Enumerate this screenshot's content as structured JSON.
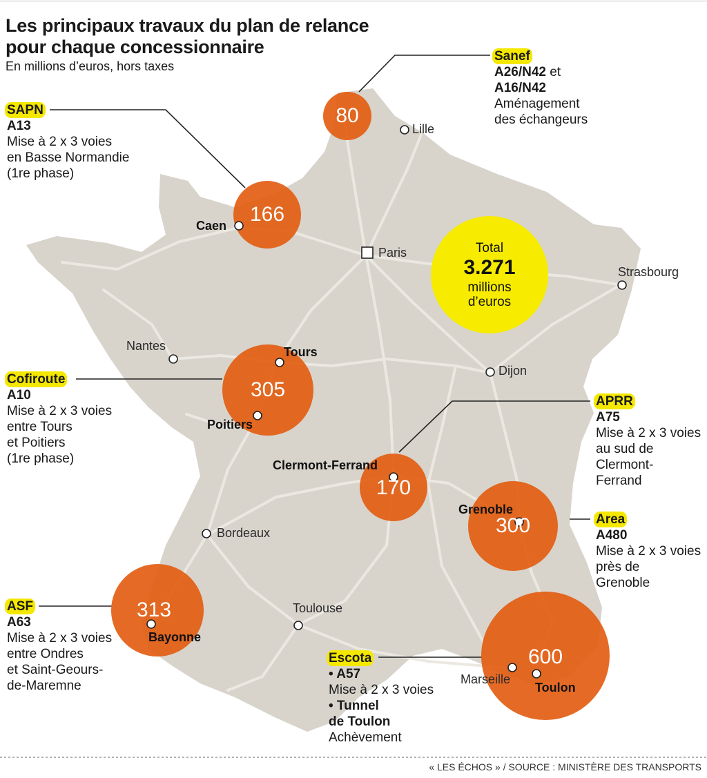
{
  "title_lines": [
    "Les principaux travaux du plan de relance",
    "pour chaque concessionnaire"
  ],
  "subtitle": "En millions d’euros, hors taxes",
  "colors": {
    "land": "#d8d4cc",
    "road": "#ebe8e2",
    "bubble": "#e35d12",
    "total": "#f7ec00",
    "highlight": "#f5e800"
  },
  "total": {
    "label": "Total",
    "value": "3.271",
    "unit_line1": "millions",
    "unit_line2": "d’euros"
  },
  "projects": [
    {
      "operator": "Sanef",
      "value": "80",
      "lines": [
        {
          "text": "A26/N42",
          "style": "bold",
          "suffix": " et"
        },
        {
          "text": "A16/N42",
          "style": "bold"
        },
        {
          "text": "Aménagement"
        },
        {
          "text": "des échangeurs"
        }
      ]
    },
    {
      "operator": "SAPN",
      "value": "166",
      "lines": [
        {
          "text": "A13",
          "style": "bold"
        },
        {
          "text": "Mise à 2 x 3 voies"
        },
        {
          "text": "en Basse Normandie"
        },
        {
          "text": "(1re phase)"
        }
      ]
    },
    {
      "operator": "Cofiroute",
      "value": "305",
      "lines": [
        {
          "text": "A10",
          "style": "bold"
        },
        {
          "text": "Mise à 2 x 3 voies"
        },
        {
          "text": "entre Tours"
        },
        {
          "text": "et Poitiers"
        },
        {
          "text": "(1re phase)"
        }
      ]
    },
    {
      "operator": "APRR",
      "value": "170",
      "lines": [
        {
          "text": "A75",
          "style": "bold"
        },
        {
          "text": "Mise à 2 x 3 voies"
        },
        {
          "text": "au sud de"
        },
        {
          "text": "Clermont-"
        },
        {
          "text": "Ferrand"
        }
      ]
    },
    {
      "operator": "Area",
      "value": "300",
      "lines": [
        {
          "text": "A480",
          "style": "bold"
        },
        {
          "text": "Mise à 2 x 3 voies"
        },
        {
          "text": "près de"
        },
        {
          "text": "Grenoble"
        }
      ]
    },
    {
      "operator": "ASF",
      "value": "313",
      "lines": [
        {
          "text": "A63",
          "style": "bold"
        },
        {
          "text": "Mise à 2 x 3 voies"
        },
        {
          "text": "entre Ondres"
        },
        {
          "text": "et Saint-Geours-"
        },
        {
          "text": "de-Maremne"
        }
      ]
    },
    {
      "operator": "Escota",
      "value": "600",
      "lines": [
        {
          "text": "• A57",
          "style": "bold"
        },
        {
          "text": "Mise à 2 x 3 voies"
        },
        {
          "text": "• Tunnel",
          "style": "bold"
        },
        {
          "text": "de Toulon",
          "style": "bold"
        },
        {
          "text": "Achèvement"
        }
      ]
    }
  ],
  "cities": [
    "Lille",
    "Caen",
    "Paris",
    "Strasbourg",
    "Nantes",
    "Tours",
    "Poitiers",
    "Dijon",
    "Clermont-Ferrand",
    "Grenoble",
    "Bordeaux",
    "Bayonne",
    "Toulouse",
    "Marseille",
    "Toulon"
  ],
  "footer": "« LES ÉCHOS » / SOURCE : MINISTÈRE DES TRANSPORTS"
}
